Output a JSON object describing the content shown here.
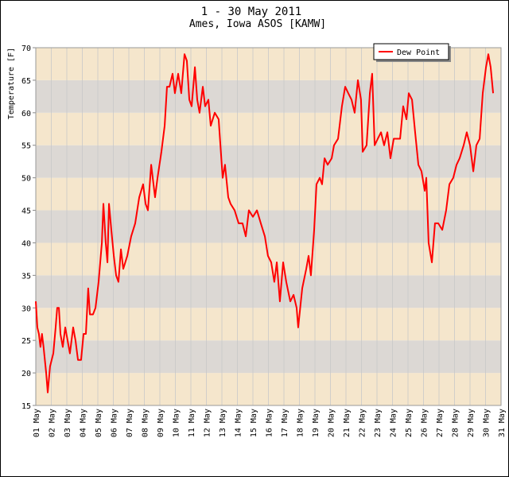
{
  "chart_data": {
    "type": "line",
    "title": "1 - 30 May 2011",
    "subtitle": "Ames, Iowa ASOS [KAMW]",
    "y_label": "Temperature [F]",
    "x": [
      1.0,
      1.1,
      1.2,
      1.3,
      1.4,
      1.5,
      1.67,
      1.77,
      1.92,
      2.13,
      2.28,
      2.38,
      2.49,
      2.59,
      2.74,
      2.9,
      3.05,
      3.2,
      3.41,
      3.56,
      3.72,
      3.92,
      4.08,
      4.23,
      4.38,
      4.49,
      4.69,
      4.85,
      5.05,
      5.26,
      5.36,
      5.51,
      5.62,
      5.72,
      5.87,
      6.03,
      6.18,
      6.33,
      6.49,
      6.64,
      6.9,
      7.15,
      7.41,
      7.67,
      7.92,
      8.08,
      8.23,
      8.44,
      8.69,
      8.85,
      9.1,
      9.31,
      9.46,
      9.62,
      9.82,
      9.97,
      10.18,
      10.38,
      10.59,
      10.74,
      10.9,
      11.05,
      11.26,
      11.41,
      11.56,
      11.77,
      11.92,
      12.13,
      12.28,
      12.54,
      12.79,
      13.05,
      13.2,
      13.41,
      13.56,
      13.82,
      14.08,
      14.33,
      14.54,
      14.74,
      15.0,
      15.26,
      15.51,
      15.77,
      15.97,
      16.18,
      16.38,
      16.54,
      16.74,
      16.95,
      17.15,
      17.41,
      17.62,
      17.82,
      17.92,
      18.18,
      18.44,
      18.59,
      18.74,
      18.95,
      19.1,
      19.31,
      19.46,
      19.62,
      19.82,
      20.08,
      20.23,
      20.49,
      20.74,
      20.95,
      21.15,
      21.36,
      21.56,
      21.77,
      21.97,
      22.08,
      22.33,
      22.54,
      22.69,
      22.85,
      23.05,
      23.26,
      23.46,
      23.67,
      23.87,
      24.08,
      24.28,
      24.49,
      24.69,
      24.9,
      25.05,
      25.26,
      25.46,
      25.67,
      25.87,
      26.08,
      26.18,
      26.33,
      26.54,
      26.74,
      26.95,
      27.21,
      27.46,
      27.67,
      27.92,
      28.13,
      28.33,
      28.59,
      28.79,
      29.0,
      29.21,
      29.41,
      29.62,
      29.82,
      30.03,
      30.18,
      30.33,
      30.49
    ],
    "series": [
      {
        "name": "Dew Point",
        "color": "#ff0000",
        "values": [
          31,
          27,
          26,
          24,
          26,
          24,
          20,
          17,
          21,
          23,
          27,
          30,
          30,
          26,
          24,
          27,
          25,
          23,
          27,
          25,
          22,
          22,
          26,
          26,
          33,
          29,
          29,
          30,
          34,
          40,
          46,
          40,
          37,
          46,
          42,
          38,
          35,
          34,
          39,
          36,
          38,
          41,
          43,
          47,
          49,
          46,
          45,
          52,
          47,
          50,
          54,
          58,
          64,
          64,
          66,
          63,
          66,
          63,
          69,
          68,
          62,
          61,
          67,
          62,
          60,
          64,
          61,
          62,
          58,
          60,
          59,
          50,
          52,
          47,
          46,
          45,
          43,
          43,
          41,
          45,
          44,
          45,
          43,
          41,
          38,
          37,
          34,
          37,
          31,
          37,
          34,
          31,
          32,
          30,
          27,
          33,
          36,
          38,
          35,
          42,
          49,
          50,
          49,
          53,
          52,
          53,
          55,
          56,
          61,
          64,
          63,
          62,
          60,
          65,
          62,
          54,
          55,
          63,
          66,
          55,
          56,
          57,
          55,
          57,
          53,
          56,
          56,
          56,
          61,
          59,
          63,
          62,
          57,
          52,
          51,
          48,
          50,
          40,
          37,
          43,
          43,
          42,
          45,
          49,
          50,
          52,
          53,
          55,
          57,
          55,
          51,
          55,
          56,
          63,
          67,
          69,
          67,
          63
        ]
      }
    ],
    "xlim": [
      1,
      31
    ],
    "xticks": [
      {
        "value": 1,
        "label": "01 May"
      },
      {
        "value": 2,
        "label": "02 May"
      },
      {
        "value": 3,
        "label": "03 May"
      },
      {
        "value": 4,
        "label": "04 May"
      },
      {
        "value": 5,
        "label": "05 May"
      },
      {
        "value": 6,
        "label": "06 May"
      },
      {
        "value": 7,
        "label": "07 May"
      },
      {
        "value": 8,
        "label": "08 May"
      },
      {
        "value": 9,
        "label": "09 May"
      },
      {
        "value": 10,
        "label": "10 May"
      },
      {
        "value": 11,
        "label": "11 May"
      },
      {
        "value": 12,
        "label": "12 May"
      },
      {
        "value": 13,
        "label": "13 May"
      },
      {
        "value": 14,
        "label": "14 May"
      },
      {
        "value": 15,
        "label": "15 May"
      },
      {
        "value": 16,
        "label": "16 May"
      },
      {
        "value": 17,
        "label": "17 May"
      },
      {
        "value": 18,
        "label": "18 May"
      },
      {
        "value": 19,
        "label": "19 May"
      },
      {
        "value": 20,
        "label": "20 May"
      },
      {
        "value": 21,
        "label": "21 May"
      },
      {
        "value": 22,
        "label": "22 May"
      },
      {
        "value": 23,
        "label": "23 May"
      },
      {
        "value": 24,
        "label": "24 May"
      },
      {
        "value": 25,
        "label": "25 May"
      },
      {
        "value": 26,
        "label": "26 May"
      },
      {
        "value": 27,
        "label": "27 May"
      },
      {
        "value": 28,
        "label": "28 May"
      },
      {
        "value": 29,
        "label": "29 May"
      },
      {
        "value": 30,
        "label": "30 May"
      },
      {
        "value": 31,
        "label": "31 May"
      }
    ],
    "ylim": [
      15,
      70
    ],
    "yticks": [
      15,
      20,
      25,
      30,
      35,
      40,
      45,
      50,
      55,
      60,
      65,
      70
    ],
    "band_colors": [
      "#f5e6cc",
      "#dcd8d4"
    ],
    "grid": true,
    "legend": "top-right"
  }
}
